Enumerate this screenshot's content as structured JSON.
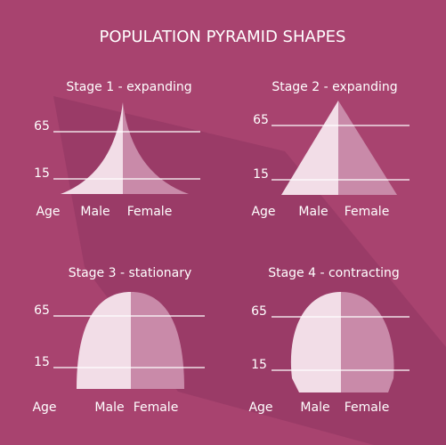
{
  "title": "POPULATION PYRAMID SHAPES",
  "panels": [
    {
      "label": "Stage 1 - expanding",
      "ticks": [
        "65",
        "15"
      ],
      "axis_label": "Age",
      "left_label": "Male",
      "right_label": "Female"
    },
    {
      "label": "Stage 2 - expanding",
      "ticks": [
        "65",
        "15"
      ],
      "axis_label": "Age",
      "left_label": "Male",
      "right_label": "Female"
    },
    {
      "label": "Stage 3 - stationary",
      "ticks": [
        "65",
        "15"
      ],
      "axis_label": "Age",
      "left_label": "Male",
      "right_label": "Female"
    },
    {
      "label": "Stage 4 - contracting",
      "ticks": [
        "65",
        "15"
      ],
      "axis_label": "Age",
      "left_label": "Male",
      "right_label": "Female"
    }
  ]
}
